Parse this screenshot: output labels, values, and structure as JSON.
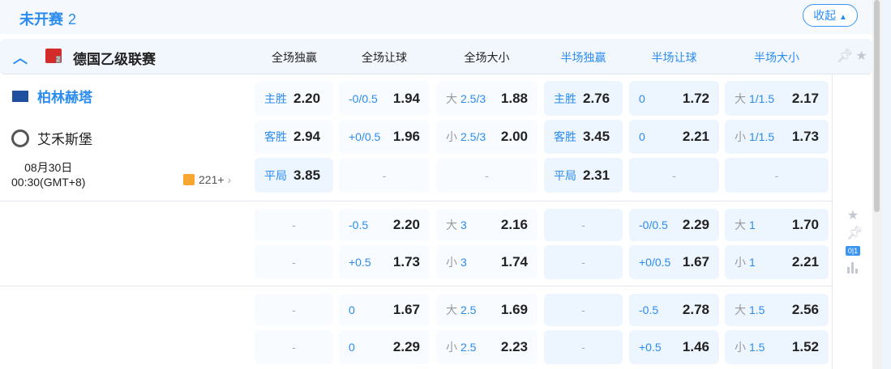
{
  "header": {
    "title": "未开赛",
    "count": "2",
    "collapse_label": "收起"
  },
  "league": {
    "name": "德国乙级联赛",
    "columns": [
      {
        "label": "全场独赢",
        "color": "#222222"
      },
      {
        "label": "全场让球",
        "color": "#222222"
      },
      {
        "label": "全场大小",
        "color": "#222222"
      },
      {
        "label": "半场独赢",
        "color": "#2b8cf0"
      },
      {
        "label": "半场让球",
        "color": "#2b8cf0"
      },
      {
        "label": "半场大小",
        "color": "#2b8cf0"
      }
    ]
  },
  "match": {
    "home": "柏林赫塔",
    "away": "艾禾斯堡",
    "date": "08月30日",
    "time": "00:30(GMT+8)",
    "more_count": "221+"
  },
  "odds_blocks": [
    [
      [
        {
          "lab": "主胜",
          "odd": "2.20"
        },
        {
          "lab": "-0/0.5",
          "odd": "1.94"
        },
        {
          "pre": "大",
          "lab": "2.5/3",
          "odd": "1.88"
        },
        {
          "lab": "主胜",
          "odd": "2.76"
        },
        {
          "lab": "0",
          "odd": "1.72"
        },
        {
          "pre": "大",
          "lab": "1/1.5",
          "odd": "2.17"
        }
      ],
      [
        {
          "lab": "客胜",
          "odd": "2.94"
        },
        {
          "lab": "+0/0.5",
          "odd": "1.96"
        },
        {
          "pre": "小",
          "lab": "2.5/3",
          "odd": "2.00"
        },
        {
          "lab": "客胜",
          "odd": "3.45"
        },
        {
          "lab": "0",
          "odd": "2.21"
        },
        {
          "pre": "小",
          "lab": "1/1.5",
          "odd": "1.73"
        }
      ],
      [
        {
          "lab": "平局",
          "odd": "3.85",
          "hl": true
        },
        null,
        null,
        {
          "lab": "平局",
          "odd": "2.31"
        },
        null,
        null
      ]
    ],
    [
      [
        null,
        {
          "lab": "-0.5",
          "odd": "2.20"
        },
        {
          "pre": "大",
          "lab": "3",
          "odd": "2.16"
        },
        null,
        {
          "lab": "-0/0.5",
          "odd": "2.29"
        },
        {
          "pre": "大",
          "lab": "1",
          "odd": "1.70"
        }
      ],
      [
        null,
        {
          "lab": "+0.5",
          "odd": "1.73"
        },
        {
          "pre": "小",
          "lab": "3",
          "odd": "1.74"
        },
        null,
        {
          "lab": "+0/0.5",
          "odd": "1.67"
        },
        {
          "pre": "小",
          "lab": "1",
          "odd": "2.21"
        }
      ]
    ],
    [
      [
        null,
        {
          "lab": "0",
          "odd": "1.67"
        },
        {
          "pre": "大",
          "lab": "2.5",
          "odd": "1.69"
        },
        null,
        {
          "lab": "-0.5",
          "odd": "2.78"
        },
        {
          "pre": "大",
          "lab": "1.5",
          "odd": "2.56"
        }
      ],
      [
        null,
        {
          "lab": "0",
          "odd": "2.29"
        },
        {
          "pre": "小",
          "lab": "2.5",
          "odd": "2.23"
        },
        null,
        {
          "lab": "+0.5",
          "odd": "1.46"
        },
        {
          "pre": "小",
          "lab": "1.5",
          "odd": "1.52"
        }
      ]
    ]
  ],
  "empty_mark": "-",
  "side_icons": {
    "score_label": "0|1"
  },
  "icons": [
    "chevron-up-icon",
    "league-badge-icon",
    "pin-icon",
    "star-icon",
    "team-flag-icon",
    "team-crest-icon",
    "stats-icon",
    "bar-chart-icon"
  ],
  "colors": {
    "accent": "#2b8cf0",
    "fulltime_cell": "#f8fbff",
    "halftime_cell": "#edf5ff"
  }
}
